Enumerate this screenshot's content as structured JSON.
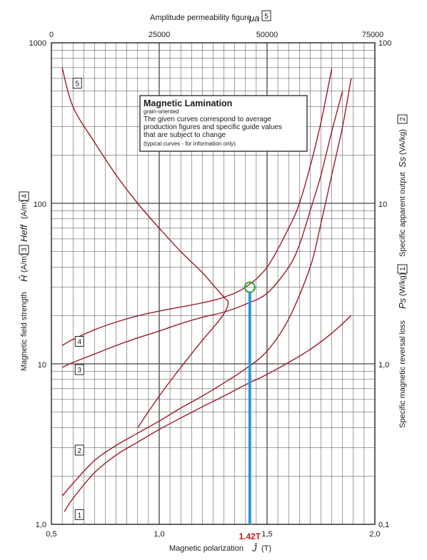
{
  "chart_data": {
    "type": "line",
    "title": "",
    "x_axis": {
      "label": "Magnetic polarization",
      "symbol": "Ĵ",
      "unit": "(T)",
      "range": [
        0.5,
        2.0
      ],
      "ticks": [
        "0,5",
        "1,0",
        "1,5",
        "2,0"
      ]
    },
    "top_axis": {
      "label": "Amplitude permeability figure",
      "symbol": "μa",
      "curve_ref": "5",
      "range": [
        0,
        75000
      ],
      "ticks": [
        "0",
        "25000",
        "50000",
        "75000"
      ]
    },
    "left_axis": {
      "label": "Magnetic field strength",
      "parts": [
        {
          "symbol": "Ĥ",
          "unit": "(A/m)",
          "ref": "3"
        },
        {
          "symbol": "Heff",
          "unit": "(A/m)",
          "ref": "4"
        }
      ],
      "scale": "log",
      "range": [
        1,
        1000
      ],
      "ticks": [
        "1,0",
        "10",
        "100",
        "1000"
      ]
    },
    "right_axis_upper": {
      "label": "Specific apparent output",
      "symbol": "Ss",
      "unit": "(VA/kg)",
      "ref": "2"
    },
    "right_axis_lower": {
      "label": "Specific magnetic reversal loss",
      "symbol": "Ps",
      "unit": "(W/kg)",
      "ref": "1"
    },
    "right_axis": {
      "scale": "log",
      "range": [
        0.1,
        100
      ],
      "ticks": [
        "0,1",
        "1,0",
        "10",
        "100"
      ]
    },
    "grid": true,
    "series": [
      {
        "name": "1",
        "axis": "right",
        "x": [
          0.56,
          0.6,
          0.7,
          0.8,
          0.9,
          1.0,
          1.1,
          1.2,
          1.3,
          1.4,
          1.5,
          1.6,
          1.7,
          1.8,
          1.89
        ],
        "y": [
          0.12,
          0.145,
          0.21,
          0.27,
          0.325,
          0.39,
          0.46,
          0.54,
          0.63,
          0.74,
          0.86,
          1.02,
          1.23,
          1.55,
          2.0
        ]
      },
      {
        "name": "2",
        "axis": "right",
        "x": [
          0.55,
          0.6,
          0.7,
          0.8,
          0.9,
          1.0,
          1.1,
          1.2,
          1.3,
          1.4,
          1.5,
          1.6,
          1.7,
          1.75,
          1.8,
          1.85,
          1.89
        ],
        "y": [
          0.15,
          0.18,
          0.25,
          0.31,
          0.37,
          0.44,
          0.53,
          0.63,
          0.76,
          0.93,
          1.2,
          1.9,
          4.0,
          7.5,
          15,
          30,
          60
        ]
      },
      {
        "name": "3",
        "axis": "left",
        "x": [
          0.55,
          0.6,
          0.7,
          0.8,
          0.9,
          1.0,
          1.1,
          1.2,
          1.3,
          1.4,
          1.5,
          1.6,
          1.65,
          1.7,
          1.75,
          1.8,
          1.85
        ],
        "y": [
          9.5,
          10.2,
          11.5,
          13.0,
          14.5,
          16.0,
          17.8,
          19.5,
          21.0,
          23.5,
          27.5,
          40,
          55,
          90,
          150,
          280,
          500
        ]
      },
      {
        "name": "4",
        "axis": "left",
        "x": [
          0.55,
          0.6,
          0.7,
          0.8,
          0.9,
          1.0,
          1.1,
          1.2,
          1.3,
          1.4,
          1.5,
          1.6,
          1.65,
          1.7,
          1.75,
          1.8
        ],
        "y": [
          13.0,
          14.2,
          16.3,
          18.2,
          19.9,
          21.3,
          22.6,
          24.0,
          26.0,
          30.0,
          40,
          70,
          100,
          170,
          320,
          690
        ]
      },
      {
        "name": "5",
        "axis": "top",
        "x": [
          0.55,
          0.6,
          0.7,
          0.8,
          0.9,
          1.0,
          1.1,
          1.2,
          1.25,
          1.3,
          1.32,
          1.3,
          1.25,
          1.2,
          1.1,
          1.0,
          0.9
        ],
        "y": [
          700,
          400,
          240,
          150,
          100,
          70,
          50,
          37,
          31,
          26,
          24,
          20.5,
          16.8,
          14.0,
          9.5,
          6.3,
          4.0
        ]
      }
    ],
    "annotations": {
      "box": {
        "title": "Magnetic Lamination",
        "subtitle": "grain-oriented",
        "lines": [
          "The given curves correspond to average",
          "production figures and specific guide values",
          "that are subject to change"
        ],
        "note": "(typical curves - for information only)"
      },
      "marker": {
        "x": 1.42,
        "y": 30,
        "label": "1.42T",
        "circle_color": "#22aa33",
        "line_color": "#2a9bd6"
      }
    },
    "colors": {
      "curve": "#9e1a28",
      "grid": "#444444",
      "box_border": "#222222"
    }
  }
}
